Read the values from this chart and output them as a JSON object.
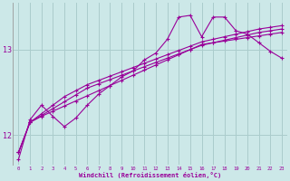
{
  "xlabel": "Windchill (Refroidissement éolien,°C)",
  "bg_color": "#cce8e8",
  "grid_color": "#aacccc",
  "line_color": "#990099",
  "x_ticks": [
    0,
    1,
    2,
    3,
    4,
    5,
    6,
    7,
    8,
    9,
    10,
    11,
    12,
    13,
    14,
    15,
    16,
    17,
    18,
    19,
    20,
    21,
    22,
    23
  ],
  "ylim": [
    11.65,
    13.55
  ],
  "yticks": [
    12,
    13
  ],
  "series_smooth1": [
    11.8,
    12.15,
    12.22,
    12.28,
    12.34,
    12.4,
    12.46,
    12.52,
    12.58,
    12.64,
    12.7,
    12.76,
    12.82,
    12.88,
    12.94,
    13.0,
    13.06,
    13.08,
    13.1,
    13.12,
    13.14,
    13.16,
    13.18,
    13.2
  ],
  "series_smooth2": [
    11.8,
    12.15,
    12.23,
    12.31,
    12.39,
    12.47,
    12.55,
    12.6,
    12.65,
    12.7,
    12.75,
    12.8,
    12.85,
    12.9,
    12.95,
    13.0,
    13.05,
    13.08,
    13.11,
    13.14,
    13.17,
    13.2,
    13.22,
    13.24
  ],
  "series_smooth3": [
    11.8,
    12.15,
    12.25,
    12.35,
    12.45,
    12.52,
    12.59,
    12.64,
    12.69,
    12.74,
    12.79,
    12.84,
    12.89,
    12.94,
    12.99,
    13.04,
    13.09,
    13.12,
    13.15,
    13.18,
    13.21,
    13.24,
    13.26,
    13.28
  ],
  "series_volatile": [
    11.72,
    12.18,
    12.35,
    12.22,
    12.1,
    12.2,
    12.35,
    12.48,
    12.58,
    12.68,
    12.75,
    12.88,
    12.96,
    13.12,
    13.38,
    13.4,
    13.15,
    13.38,
    13.38,
    13.22,
    13.18,
    13.08,
    12.98,
    12.9
  ]
}
